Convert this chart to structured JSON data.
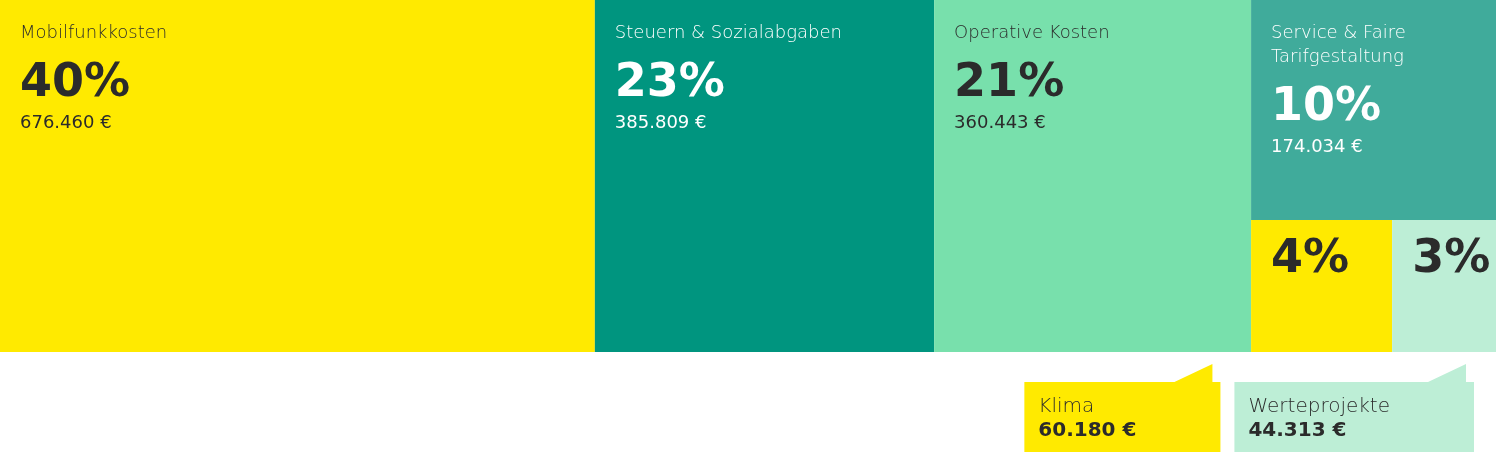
{
  "chart_data": {
    "type": "other",
    "categories": [
      "Mobilfunkkosten",
      "Steuern & Sozialabgaben",
      "Operative Kosten",
      "Service & Faire Tarifgestaltung",
      "Klima",
      "Werteprojekte"
    ],
    "values": [
      676460,
      385809,
      360443,
      174034,
      60180,
      44313
    ],
    "value_labels": [
      "676.460 €",
      "385.809 €",
      "360.443 €",
      "174.034 €",
      "60.180 €",
      "44.313 €"
    ],
    "colors": [
      "#ffea00",
      "#00957f",
      "#78e0ac",
      "#40ab9b",
      "#ffea00",
      "#bdeed6"
    ],
    "annotations": [
      {
        "text": "40%",
        "x": "Mobilfunkkosten"
      },
      {
        "text": "23%",
        "x": "Steuern & Sozialabgaben"
      },
      {
        "text": "21%",
        "x": "Operative Kosten"
      },
      {
        "text": "10%",
        "x": "Service & Faire Tarifgestaltung"
      },
      {
        "text": "4%",
        "x": "Klima"
      },
      {
        "text": "3%",
        "x": "Werteprojekte"
      }
    ]
  }
}
